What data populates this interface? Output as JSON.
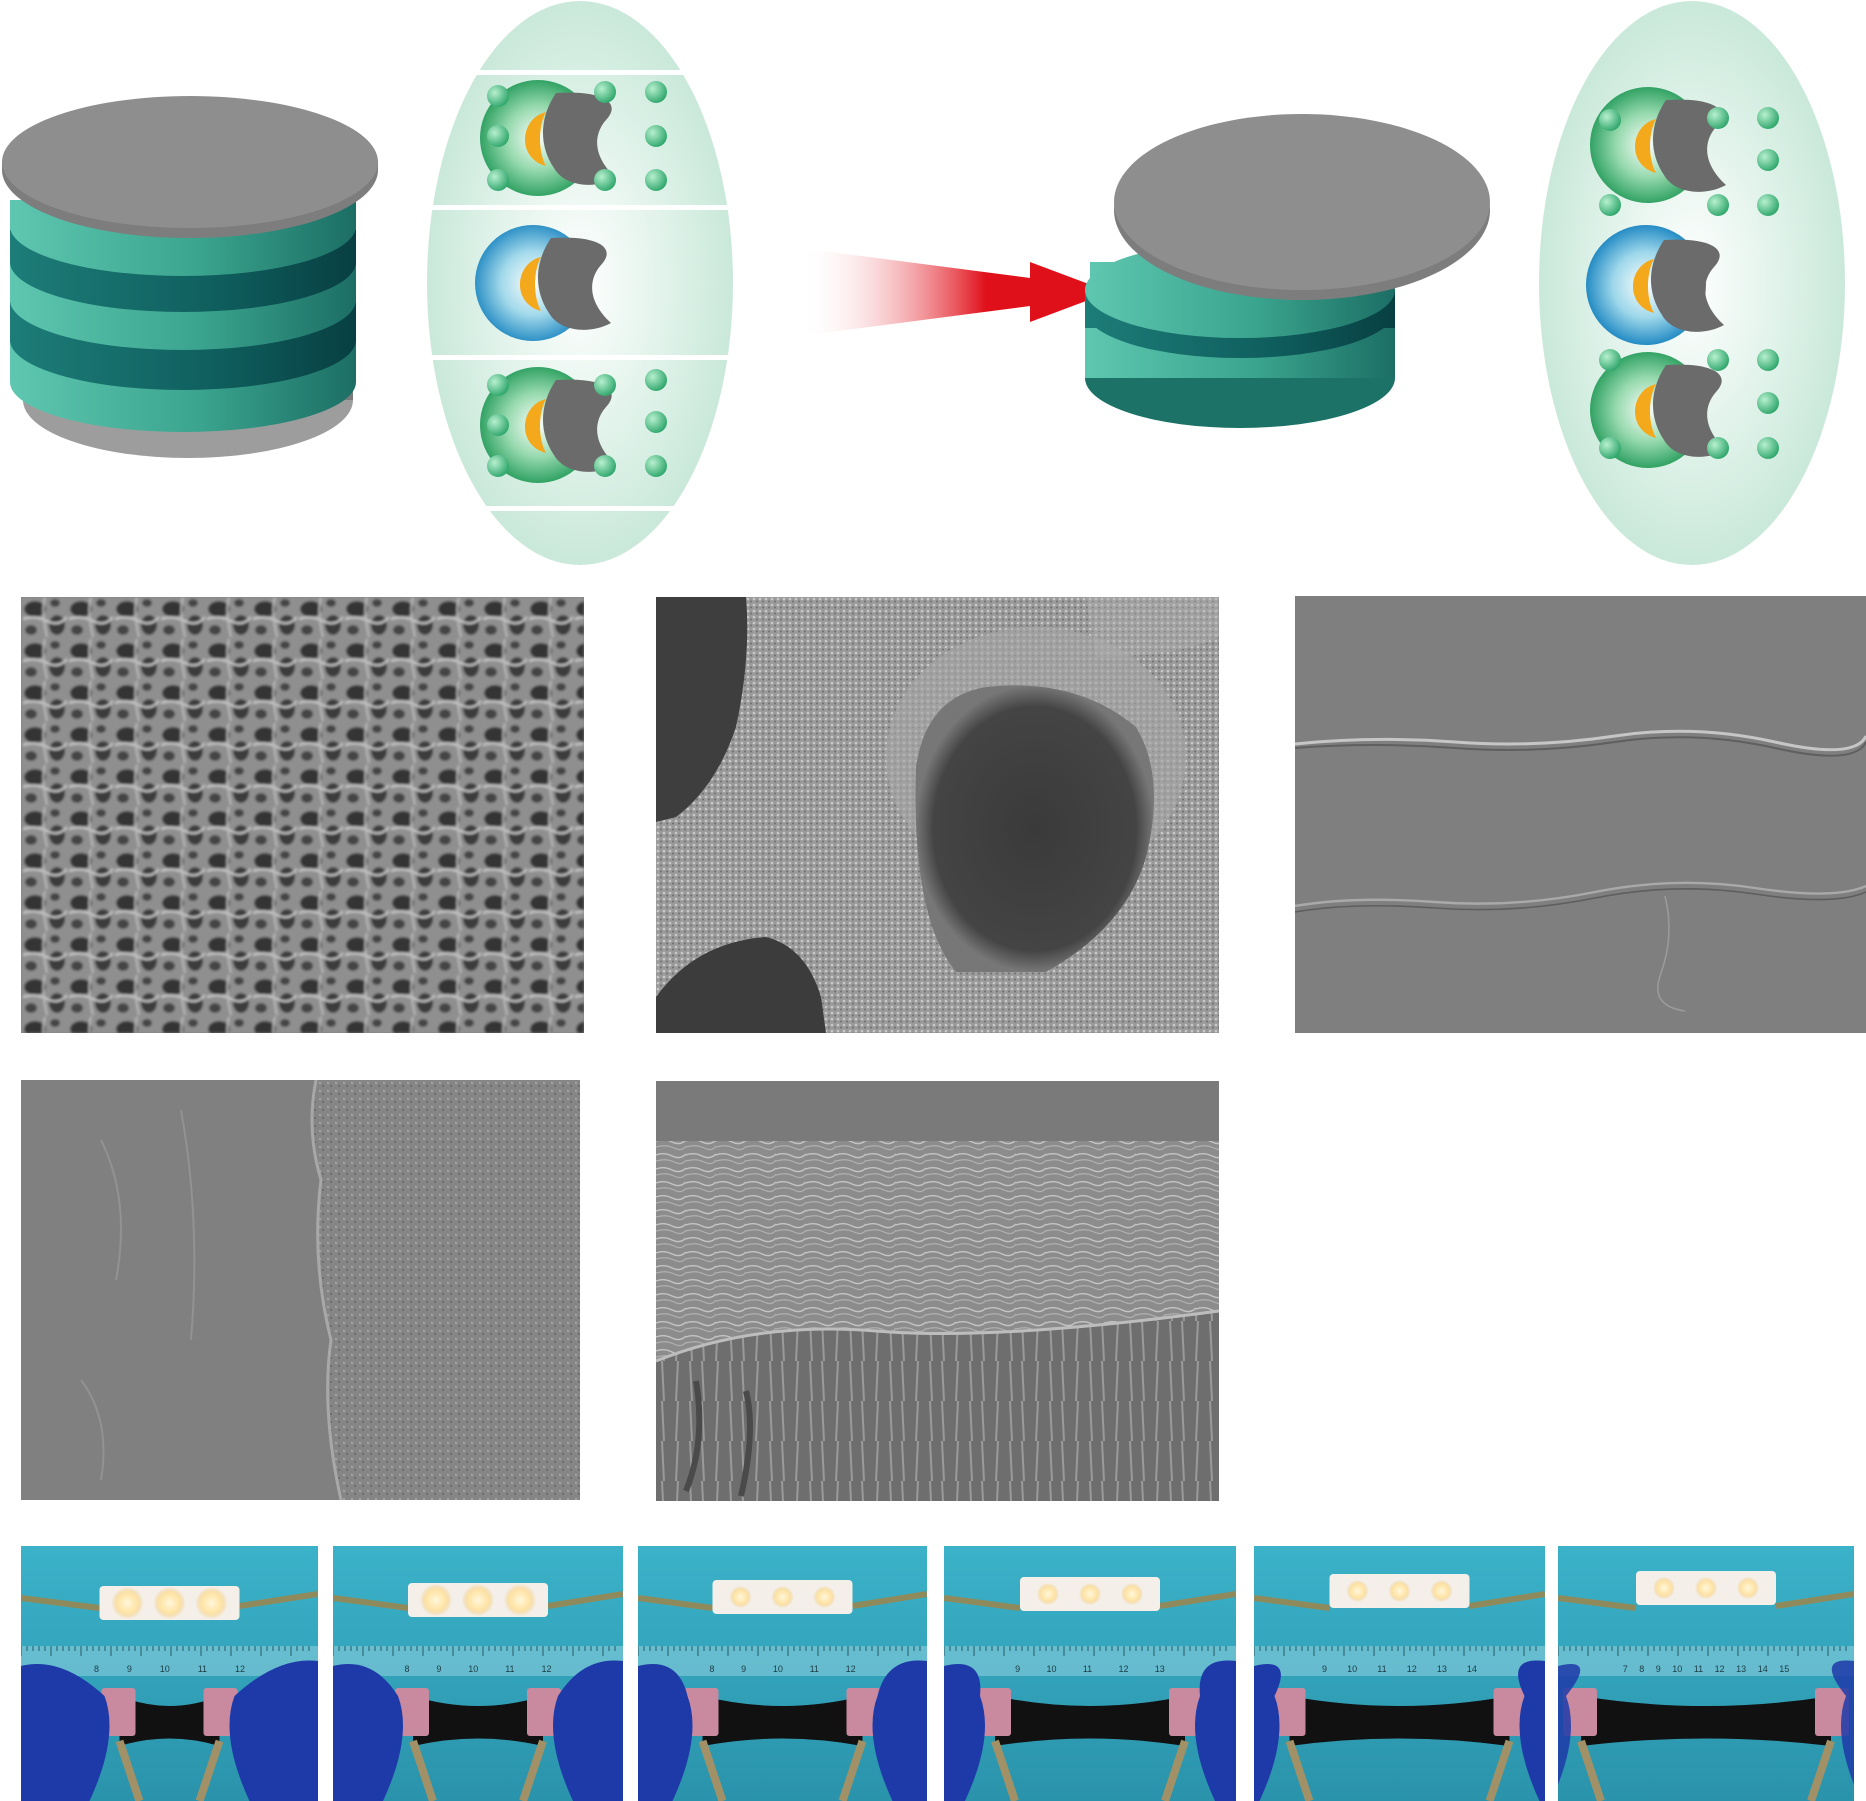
{
  "colors": {
    "teal_light": "#3fae97",
    "teal_dark": "#0e5e5c",
    "disk_gray": "#8c8c8c",
    "ellipse_bg": "#cfeadd",
    "arrow_red": "#e0101a",
    "sem_gray": "#7a7a7a",
    "photo_bg": "#2fa9c2",
    "glove_blue": "#1d3aa8",
    "clip_pink": "#c98aa0"
  },
  "ruler_ticks": [
    [
      "8",
      "9",
      "10",
      "11",
      "12"
    ],
    [
      "8",
      "9",
      "10",
      "11",
      "12"
    ],
    [
      "8",
      "9",
      "10",
      "11",
      "12"
    ],
    [
      "9",
      "10",
      "11",
      "12",
      "13"
    ],
    [
      "9",
      "10",
      "11",
      "12",
      "13",
      "14"
    ],
    [
      "7",
      "8",
      "9",
      "10",
      "11",
      "12",
      "13",
      "14",
      "15"
    ]
  ]
}
